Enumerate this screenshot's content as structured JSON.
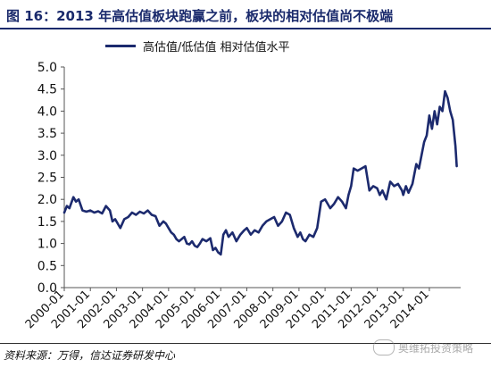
{
  "title": "图 16：2013 年高估值板块跑赢之前，板块的相对估值尚不极端",
  "source": "资料来源：万得，信达证券研发中心",
  "watermark": "奥维拓投资策略",
  "colors": {
    "title": "#1a2a6c",
    "line": "#1c2a6e",
    "axis": "#555555"
  },
  "chart_data": {
    "type": "line",
    "title": "图 16：2013 年高估值板块跑赢之前，板块的相对估值尚不极端",
    "xlabel": "",
    "ylabel": "",
    "ylim": [
      0.0,
      5.0
    ],
    "yticks": [
      "5.0",
      "4.5",
      "4.0",
      "3.5",
      "3.0",
      "2.5",
      "2.0",
      "1.5",
      "1.0",
      "0.5",
      "0.0"
    ],
    "xticks": [
      "2000-01",
      "2001-01",
      "2002-01",
      "2003-01",
      "2004-01",
      "2005-01",
      "2006-01",
      "2007-01",
      "2008-01",
      "2009-01",
      "2010-01",
      "2011-01",
      "2012-01",
      "2013-01",
      "2014-01"
    ],
    "xlim": [
      2000.0,
      2015.2
    ],
    "grid": false,
    "legend_position": "top",
    "series": [
      {
        "name": "高估值/低估值 相对估值水平",
        "x": [
          2000.0,
          2000.1,
          2000.2,
          2000.35,
          2000.45,
          2000.55,
          2000.7,
          2000.85,
          2001.0,
          2001.15,
          2001.3,
          2001.45,
          2001.6,
          2001.75,
          2001.85,
          2001.95,
          2002.05,
          2002.15,
          2002.3,
          2002.45,
          2002.6,
          2002.75,
          2002.9,
          2003.05,
          2003.2,
          2003.35,
          2003.5,
          2003.65,
          2003.8,
          2003.9,
          2004.0,
          2004.1,
          2004.2,
          2004.3,
          2004.4,
          2004.5,
          2004.6,
          2004.7,
          2004.8,
          2004.9,
          2005.0,
          2005.1,
          2005.2,
          2005.3,
          2005.45,
          2005.6,
          2005.7,
          2005.8,
          2005.9,
          2006.0,
          2006.1,
          2006.2,
          2006.3,
          2006.45,
          2006.6,
          2006.75,
          2006.9,
          2007.0,
          2007.15,
          2007.3,
          2007.45,
          2007.6,
          2007.75,
          2007.9,
          2008.05,
          2008.2,
          2008.35,
          2008.5,
          2008.65,
          2008.8,
          2008.95,
          2009.05,
          2009.15,
          2009.25,
          2009.4,
          2009.55,
          2009.7,
          2009.85,
          2010.0,
          2010.1,
          2010.2,
          2010.35,
          2010.5,
          2010.65,
          2010.8,
          2010.9,
          2011.0,
          2011.1,
          2011.25,
          2011.4,
          2011.55,
          2011.7,
          2011.85,
          2012.0,
          2012.1,
          2012.2,
          2012.35,
          2012.5,
          2012.65,
          2012.8,
          2012.95,
          2013.0,
          2013.1,
          2013.2,
          2013.35,
          2013.5,
          2013.6,
          2013.7,
          2013.8,
          2013.9,
          2014.0,
          2014.1,
          2014.2,
          2014.3,
          2014.4,
          2014.5,
          2014.6,
          2014.7,
          2014.8,
          2014.9,
          2015.0,
          2015.05
        ],
        "values": [
          1.7,
          1.85,
          1.8,
          2.05,
          1.95,
          2.0,
          1.75,
          1.72,
          1.75,
          1.7,
          1.73,
          1.68,
          1.85,
          1.75,
          1.5,
          1.55,
          1.45,
          1.35,
          1.55,
          1.6,
          1.7,
          1.65,
          1.72,
          1.68,
          1.75,
          1.65,
          1.62,
          1.4,
          1.5,
          1.45,
          1.35,
          1.25,
          1.2,
          1.1,
          1.05,
          1.1,
          1.15,
          1.0,
          0.98,
          1.05,
          0.95,
          0.92,
          1.0,
          1.1,
          1.05,
          1.12,
          0.85,
          0.9,
          0.8,
          0.75,
          1.2,
          1.3,
          1.15,
          1.25,
          1.05,
          1.2,
          1.3,
          1.35,
          1.2,
          1.3,
          1.25,
          1.4,
          1.5,
          1.55,
          1.6,
          1.4,
          1.5,
          1.7,
          1.65,
          1.35,
          1.15,
          1.25,
          1.1,
          1.05,
          1.2,
          1.15,
          1.35,
          1.95,
          2.0,
          1.9,
          1.8,
          1.9,
          2.05,
          1.95,
          1.8,
          2.1,
          2.3,
          2.7,
          2.65,
          2.7,
          2.75,
          2.2,
          2.3,
          2.25,
          2.1,
          2.2,
          2.0,
          2.4,
          2.3,
          2.35,
          2.2,
          2.1,
          2.3,
          2.15,
          2.35,
          2.8,
          2.7,
          3.0,
          3.3,
          3.45,
          3.9,
          3.6,
          4.0,
          3.7,
          4.1,
          4.0,
          4.45,
          4.3,
          4.0,
          3.8,
          3.2,
          2.75
        ]
      }
    ]
  }
}
